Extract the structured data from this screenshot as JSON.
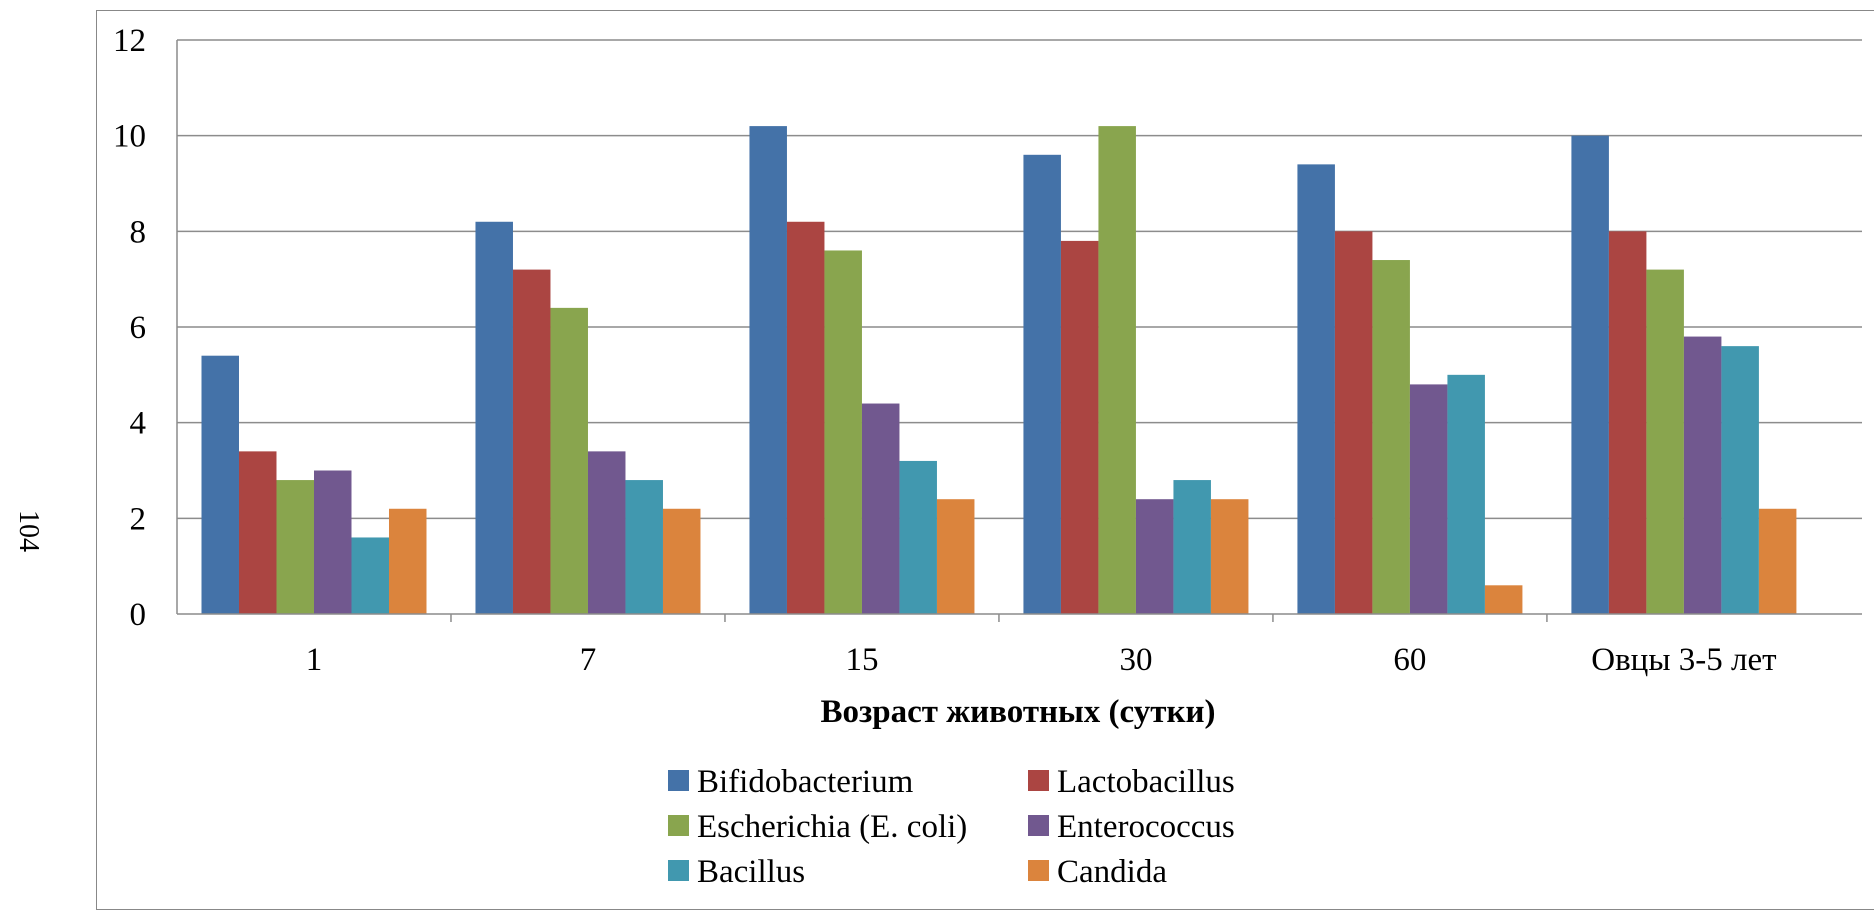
{
  "page_number": "104",
  "chart_data": {
    "type": "bar",
    "xlabel": "Возраст животных (сутки)",
    "ylabel": "",
    "ylim": [
      0,
      12
    ],
    "yticks": [
      0,
      2,
      4,
      6,
      8,
      10,
      12
    ],
    "grid": true,
    "legend_position": "bottom",
    "categories": [
      "1",
      "7",
      "15",
      "30",
      "60",
      "Овцы 3-5 лет"
    ],
    "series": [
      {
        "name": "Bifidobacterium",
        "color": "#4472a8",
        "values": [
          5.4,
          8.2,
          10.2,
          9.6,
          9.4,
          10.0
        ]
      },
      {
        "name": "Lactobacillus",
        "color": "#ab4542",
        "values": [
          3.4,
          7.2,
          8.2,
          7.8,
          8.0,
          8.0
        ]
      },
      {
        "name": "Escherichia (E. coli)",
        "color": "#89a54e",
        "values": [
          2.8,
          6.4,
          7.6,
          10.2,
          7.4,
          7.2
        ]
      },
      {
        "name": "Enterococcus",
        "color": "#71588f",
        "values": [
          3.0,
          3.4,
          4.4,
          2.4,
          4.8,
          5.8
        ]
      },
      {
        "name": "Bacillus",
        "color": "#4198af",
        "values": [
          1.6,
          2.8,
          3.2,
          2.8,
          5.0,
          5.6
        ]
      },
      {
        "name": "Candida",
        "color": "#db843d",
        "values": [
          2.2,
          2.2,
          2.4,
          2.4,
          0.6,
          2.2
        ]
      }
    ]
  }
}
